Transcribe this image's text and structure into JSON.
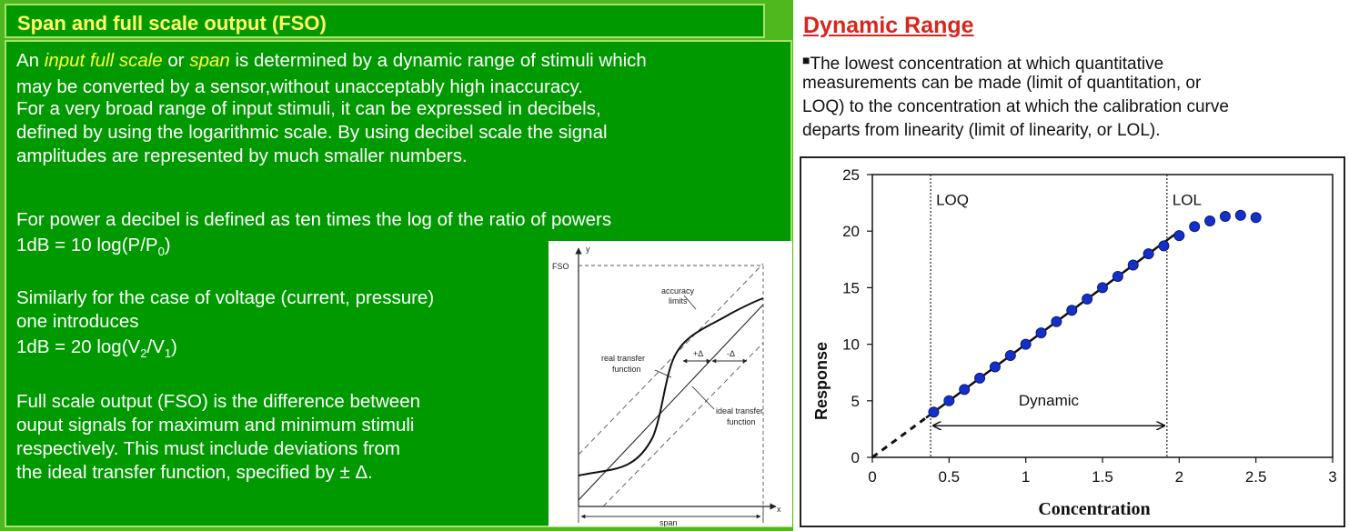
{
  "left": {
    "title": "Span and full scale output (FSO)",
    "p1": [
      {
        "a": "An ",
        "em1": "input full scale",
        "b": " or ",
        "em2": "span",
        "c": " is determined by a dynamic range of stimuli which"
      },
      "may be converted by a sensor,without unacceptably high inaccuracy.",
      "For a very broad range of input stimuli, it can be expressed in decibels,",
      "defined by using the logarithmic scale. By using decibel scale the signal",
      "amplitudes are represented by much smaller numbers."
    ],
    "p2_line1": "For power a decibel is defined as ten times the log of the ratio of powers",
    "p2_eq": {
      "a": "1dB = 10 log(P/P",
      "sub": "0",
      "b": ")"
    },
    "p3_line1": "Similarly for the case of voltage (current, pressure)",
    "p3_line2": "one introduces",
    "p3_eq": {
      "a": "1dB = 20 log(V",
      "sub1": "2",
      "b": "/V",
      "sub2": "1",
      "c": ")"
    },
    "p4": [
      "Full scale output (FSO) is the difference between",
      "ouput signals for maximum and minimum stimuli",
      "respectively. This must include deviations from",
      "the ideal transfer function, specified by ± Δ."
    ],
    "figure": {
      "y_label": "y",
      "x_label": "x",
      "fso_label": "FSO",
      "accuracy_limits": [
        "accuracy",
        "limits"
      ],
      "real_transfer": [
        "real transfer",
        "function"
      ],
      "ideal_transfer": [
        "ideal transfer",
        "function"
      ],
      "plus_delta": "+Δ",
      "minus_delta": "-Δ",
      "span_label": "span"
    }
  },
  "right": {
    "title": "Dynamic Range",
    "bullet": "■",
    "lines": [
      "The lowest concentration at which quantitative",
      "measurements can be made (limit of quantitation, or",
      "LOQ) to the concentration at which the calibration curve",
      "departs from linearity (limit of linearity, or LOL)."
    ]
  },
  "chart_data": {
    "type": "scatter",
    "xlabel": "Concentration",
    "ylabel": "Response",
    "xlim": [
      0,
      3
    ],
    "ylim": [
      0,
      25
    ],
    "xticks": [
      "0",
      "0.5",
      "1",
      "1.5",
      "2",
      "2.5",
      "3"
    ],
    "yticks": [
      "0",
      "5",
      "10",
      "15",
      "20",
      "25"
    ],
    "points": [
      [
        0.4,
        4
      ],
      [
        0.5,
        5
      ],
      [
        0.6,
        6
      ],
      [
        0.7,
        7
      ],
      [
        0.8,
        8
      ],
      [
        0.9,
        9
      ],
      [
        1.0,
        10
      ],
      [
        1.1,
        11
      ],
      [
        1.2,
        12
      ],
      [
        1.3,
        13
      ],
      [
        1.4,
        14
      ],
      [
        1.5,
        15
      ],
      [
        1.6,
        16
      ],
      [
        1.7,
        17
      ],
      [
        1.8,
        18
      ],
      [
        1.9,
        18.7
      ],
      [
        2.0,
        19.6
      ],
      [
        2.1,
        20.4
      ],
      [
        2.2,
        20.9
      ],
      [
        2.3,
        21.3
      ],
      [
        2.4,
        21.4
      ],
      [
        2.5,
        21.2
      ]
    ],
    "fit_line": {
      "solid": [
        [
          0.35,
          3.5
        ],
        [
          2.0,
          20.0
        ]
      ],
      "dashed": [
        [
          0,
          0
        ],
        [
          0.35,
          3.5
        ]
      ]
    },
    "loq_x": 0.38,
    "lol_x": 1.92,
    "annotations": {
      "loq": "LOQ",
      "lol": "LOL",
      "dynamic": "Dynamic"
    },
    "marker_color": "#1530c8",
    "grid": false
  }
}
